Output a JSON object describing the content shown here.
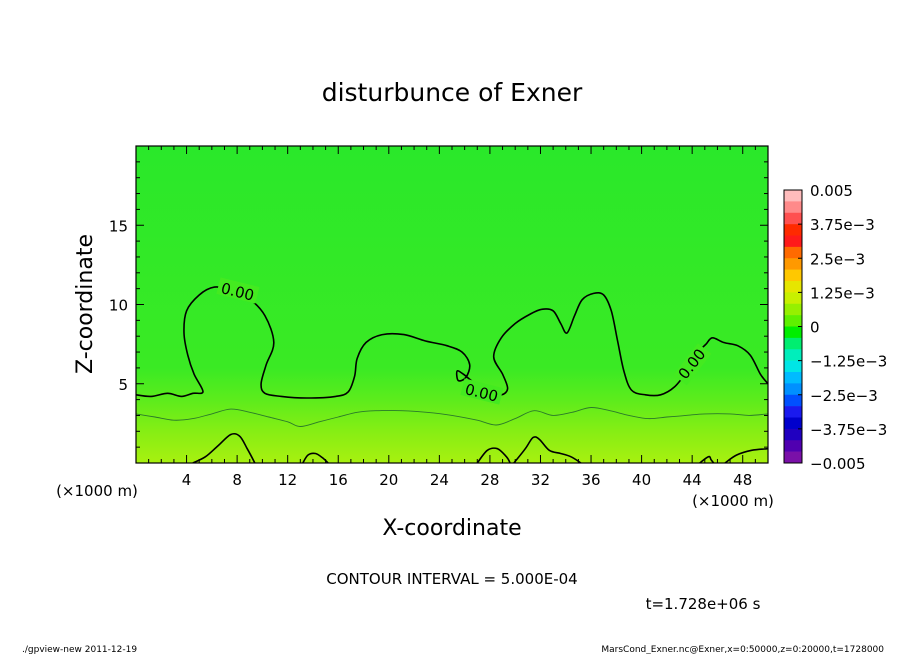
{
  "chart_data": {
    "type": "contour",
    "title": "disturbunce of Exner",
    "xlabel": "X-coordinate",
    "ylabel": "Z-coordinate",
    "x_unit": "(×1000 m)",
    "y_unit": "(×1000 m)",
    "xlim": [
      0,
      50
    ],
    "ylim": [
      0,
      20
    ],
    "x_ticks": [
      4,
      8,
      12,
      16,
      20,
      24,
      28,
      32,
      36,
      40,
      44,
      48
    ],
    "y_ticks": [
      5,
      10,
      15
    ],
    "contour_interval_text": "CONTOUR INTERVAL = 5.000E-04",
    "time_text": "t=1.728e+06 s",
    "contour_labels": [
      "0.00",
      "0.00",
      "0.00"
    ],
    "zero_contour": [
      [
        0,
        4.3
      ],
      [
        1.2,
        4.2
      ],
      [
        2.5,
        4.4
      ],
      [
        3.6,
        4.2
      ],
      [
        4.5,
        4.4
      ],
      [
        5.3,
        4.5
      ],
      [
        4.6,
        5.6
      ],
      [
        4.1,
        6.8
      ],
      [
        3.8,
        8.2
      ],
      [
        4.0,
        9.6
      ],
      [
        5.0,
        10.6
      ],
      [
        6.2,
        11.1
      ],
      [
        7.4,
        10.9
      ],
      [
        8.9,
        10.4
      ],
      [
        10.2,
        9.3
      ],
      [
        10.9,
        7.6
      ],
      [
        10.3,
        6.2
      ],
      [
        9.9,
        5.0
      ],
      [
        10.2,
        4.4
      ],
      [
        11.5,
        4.2
      ],
      [
        13.5,
        4.1
      ],
      [
        15.8,
        4.2
      ],
      [
        16.8,
        4.5
      ],
      [
        17.3,
        5.5
      ],
      [
        17.5,
        6.6
      ],
      [
        18.2,
        7.6
      ],
      [
        19.5,
        8.1
      ],
      [
        21.2,
        8.1
      ],
      [
        22.9,
        7.7
      ],
      [
        24.6,
        7.4
      ],
      [
        25.8,
        7.0
      ],
      [
        26.4,
        6.2
      ],
      [
        26.1,
        5.4
      ],
      [
        25.5,
        5.2
      ],
      [
        25.4,
        5.8
      ],
      [
        25.9,
        5.6
      ],
      [
        27.0,
        4.9
      ],
      [
        27.9,
        4.5
      ],
      [
        28.9,
        4.3
      ],
      [
        29.4,
        4.7
      ],
      [
        29.0,
        5.6
      ],
      [
        28.3,
        6.7
      ],
      [
        28.9,
        7.9
      ],
      [
        30.0,
        8.8
      ],
      [
        31.2,
        9.4
      ],
      [
        32.1,
        9.7
      ],
      [
        33.0,
        9.6
      ],
      [
        33.6,
        8.8
      ],
      [
        34.1,
        8.2
      ],
      [
        34.7,
        9.3
      ],
      [
        35.3,
        10.3
      ],
      [
        36.2,
        10.7
      ],
      [
        37.0,
        10.6
      ],
      [
        37.6,
        9.6
      ],
      [
        38.1,
        7.7
      ],
      [
        38.6,
        5.8
      ],
      [
        39.2,
        4.6
      ],
      [
        40.3,
        4.3
      ],
      [
        41.5,
        4.3
      ],
      [
        42.6,
        4.8
      ],
      [
        43.6,
        5.8
      ],
      [
        44.5,
        7.0
      ],
      [
        45.1,
        7.5
      ],
      [
        45.6,
        7.9
      ],
      [
        46.5,
        7.6
      ],
      [
        47.6,
        7.4
      ],
      [
        48.6,
        6.8
      ],
      [
        49.4,
        5.6
      ],
      [
        50,
        5.0
      ]
    ],
    "lower_contour": [
      [
        0,
        3.1
      ],
      [
        1.5,
        2.9
      ],
      [
        3.0,
        2.7
      ],
      [
        4.5,
        2.8
      ],
      [
        6.0,
        3.1
      ],
      [
        7.5,
        3.4
      ],
      [
        9.0,
        3.2
      ],
      [
        10.5,
        2.9
      ],
      [
        12.0,
        2.6
      ],
      [
        13.0,
        2.3
      ],
      [
        14.5,
        2.6
      ],
      [
        16.0,
        2.9
      ],
      [
        17.5,
        3.2
      ],
      [
        19.0,
        3.3
      ],
      [
        21.0,
        3.3
      ],
      [
        23.0,
        3.2
      ],
      [
        25.0,
        3.0
      ],
      [
        27.0,
        2.7
      ],
      [
        28.5,
        2.4
      ],
      [
        30.0,
        2.8
      ],
      [
        31.5,
        3.3
      ],
      [
        33.0,
        3.0
      ],
      [
        34.5,
        3.2
      ],
      [
        36.0,
        3.5
      ],
      [
        37.5,
        3.3
      ],
      [
        39.0,
        3.0
      ],
      [
        40.5,
        2.8
      ],
      [
        42.0,
        2.9
      ],
      [
        43.5,
        3.0
      ],
      [
        45.0,
        3.1
      ],
      [
        47.0,
        3.1
      ],
      [
        48.5,
        3.0
      ],
      [
        50,
        3.1
      ]
    ],
    "bottom_contours": [
      [
        [
          4.5,
          0
        ],
        [
          5.5,
          0.4
        ],
        [
          6.5,
          1.1
        ],
        [
          7.5,
          1.8
        ],
        [
          8.2,
          1.7
        ],
        [
          8.8,
          0.9
        ],
        [
          9.4,
          0
        ]
      ],
      [
        [
          13.2,
          0
        ],
        [
          13.6,
          0.5
        ],
        [
          14.2,
          0.6
        ],
        [
          14.8,
          0.3
        ],
        [
          15.2,
          0
        ]
      ],
      [
        [
          27.0,
          0
        ],
        [
          27.8,
          0.8
        ],
        [
          28.6,
          0.9
        ],
        [
          29.3,
          0.4
        ],
        [
          29.6,
          0
        ]
      ],
      [
        [
          29.9,
          0
        ],
        [
          30.8,
          0.9
        ],
        [
          31.4,
          1.6
        ],
        [
          31.9,
          1.5
        ],
        [
          32.7,
          0.8
        ],
        [
          33.6,
          0.6
        ],
        [
          34.4,
          0.4
        ],
        [
          35.2,
          0
        ]
      ],
      [
        [
          44.6,
          0
        ],
        [
          45.3,
          0.4
        ],
        [
          45.5,
          0.2
        ],
        [
          45.7,
          0
        ]
      ],
      [
        [
          46.6,
          0
        ],
        [
          47.5,
          0.5
        ],
        [
          48.7,
          0.8
        ],
        [
          50,
          0.9
        ]
      ]
    ],
    "colorbar": {
      "tick_labels": [
        "0.005",
        "3.75e−3",
        "2.5e−3",
        "1.25e−3",
        "0",
        "−1.25e−3",
        "−2.5e−3",
        "−3.75e−3",
        "−0.005"
      ],
      "tick_values": [
        0.005,
        0.00375,
        0.0025,
        0.00125,
        0,
        -0.00125,
        -0.0025,
        -0.00375,
        -0.005
      ],
      "colors_top_to_bottom": [
        "#ffbcbc",
        "#ff8a8a",
        "#ff5050",
        "#ff2a00",
        "#ff1a1a",
        "#ff6a00",
        "#ff9900",
        "#ffc800",
        "#e6e600",
        "#c8f000",
        "#96f000",
        "#5ef000",
        "#00ee00",
        "#00ee70",
        "#00eebb",
        "#00e6e6",
        "#00bbff",
        "#0090ff",
        "#0050ff",
        "#1a1aee",
        "#0000cc",
        "#2000c0",
        "#5000b0",
        "#7a10a8"
      ]
    }
  },
  "footer": {
    "left": "./gpview-new   2011-12-19",
    "right": "MarsCond_Exner.nc@Exner,x=0:50000,z=0:20000,t=1728000"
  }
}
